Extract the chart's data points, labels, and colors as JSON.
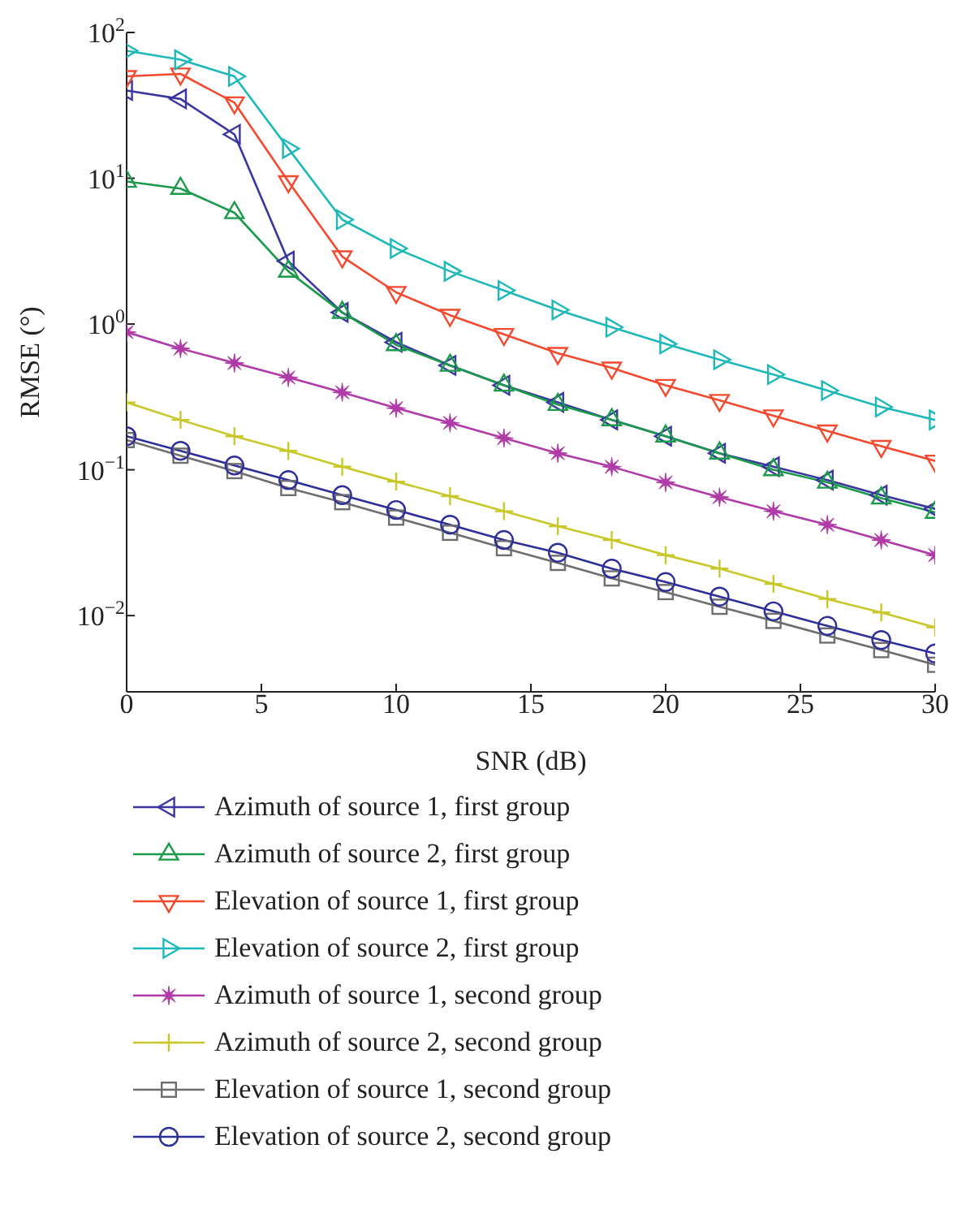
{
  "chart_data": {
    "type": "line",
    "xlabel": "SNR (dB)",
    "ylabel": "RMSE (°)",
    "log": "y",
    "grid": false,
    "legend": "bottom",
    "line_style": "solid",
    "x": [
      0,
      2,
      4,
      6,
      8,
      10,
      12,
      14,
      16,
      18,
      20,
      22,
      24,
      26,
      28,
      30
    ],
    "xlim": [
      0,
      30
    ],
    "xticks": [
      0,
      5,
      10,
      15,
      20,
      25,
      30
    ],
    "ylim": [
      0.003,
      100
    ],
    "yticks": [
      {
        "value": 0.01,
        "label": "10$^{−2}$"
      },
      {
        "value": 0.1,
        "label": "10$^{−1}$"
      },
      {
        "value": 1,
        "label": "10$^{0}$"
      },
      {
        "value": 10,
        "label": "10$^{1}$"
      },
      {
        "value": 100,
        "label": "10$^{2}$"
      }
    ],
    "series": [
      {
        "name": "Azimuth of source 1, first group",
        "color": "#3a36a0",
        "marker": "triangle-left",
        "values": [
          40,
          35,
          20,
          2.7,
          1.2,
          0.75,
          0.52,
          0.38,
          0.29,
          0.22,
          0.17,
          0.13,
          0.105,
          0.085,
          0.067,
          0.054
        ]
      },
      {
        "name": "Azimuth of source 2, first group",
        "color": "#1a9a4a",
        "marker": "triangle-up",
        "values": [
          9.5,
          8.5,
          5.8,
          2.3,
          1.2,
          0.72,
          0.52,
          0.38,
          0.28,
          0.22,
          0.17,
          0.13,
          0.1,
          0.082,
          0.064,
          0.051
        ]
      },
      {
        "name": "Elevation of source 1, first group",
        "color": "#f2492f",
        "marker": "triangle-down",
        "values": [
          50,
          52,
          33,
          9.5,
          2.9,
          1.65,
          1.15,
          0.85,
          0.63,
          0.5,
          0.38,
          0.3,
          0.235,
          0.185,
          0.145,
          0.115
        ]
      },
      {
        "name": "Elevation of source 2, first group",
        "color": "#1fb8b8",
        "marker": "triangle-right",
        "values": [
          75,
          65,
          50,
          16,
          5.2,
          3.3,
          2.3,
          1.7,
          1.25,
          0.95,
          0.73,
          0.57,
          0.45,
          0.35,
          0.27,
          0.22
        ]
      },
      {
        "name": "Azimuth of source 1, second group",
        "color": "#b03aa8",
        "marker": "star",
        "values": [
          0.88,
          0.68,
          0.54,
          0.43,
          0.34,
          0.265,
          0.21,
          0.165,
          0.13,
          0.105,
          0.082,
          0.065,
          0.052,
          0.042,
          0.033,
          0.026
        ]
      },
      {
        "name": "Azimuth of source 2, second group",
        "color": "#c8c82a",
        "marker": "cross",
        "values": [
          0.29,
          0.22,
          0.17,
          0.135,
          0.105,
          0.083,
          0.066,
          0.052,
          0.041,
          0.033,
          0.026,
          0.021,
          0.0165,
          0.013,
          0.0105,
          0.0083
        ]
      },
      {
        "name": "Elevation of source 1, second group",
        "color": "#6e6e6e",
        "marker": "square",
        "values": [
          0.16,
          0.125,
          0.098,
          0.075,
          0.06,
          0.047,
          0.037,
          0.029,
          0.023,
          0.018,
          0.0145,
          0.0115,
          0.0092,
          0.0073,
          0.0058,
          0.0046
        ]
      },
      {
        "name": "Elevation of source 2, second group",
        "color": "#2e2e9a",
        "marker": "circle",
        "values": [
          0.17,
          0.135,
          0.107,
          0.085,
          0.067,
          0.053,
          0.042,
          0.033,
          0.027,
          0.021,
          0.017,
          0.0135,
          0.0107,
          0.0085,
          0.0068,
          0.0055
        ]
      }
    ]
  }
}
